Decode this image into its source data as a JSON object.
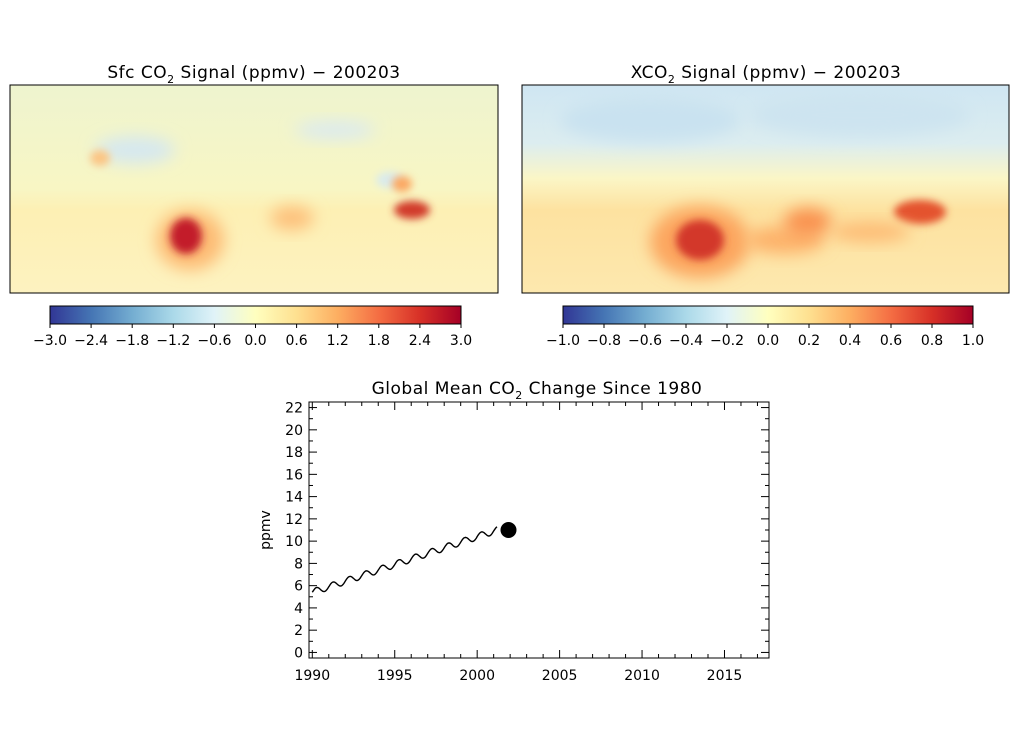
{
  "chart_data": [
    {
      "type": "heatmap",
      "panel": "sfc",
      "title_pre": "Sfc CO",
      "title_sub": "2",
      "title_post": " Signal (ppmv) − 200203",
      "colorbar": {
        "min": -3.0,
        "max": 3.0,
        "tick_labels": [
          "−3.0",
          "−2.4",
          "−1.8",
          "−1.2",
          "−0.6",
          "0.0",
          "0.6",
          "1.2",
          "1.8",
          "2.4",
          "3.0"
        ]
      },
      "hotspots": [
        {
          "region": "south-america",
          "value": 3.0
        },
        {
          "region": "southern-africa",
          "value": 1.2
        },
        {
          "region": "indonesia",
          "value": 3.0
        },
        {
          "region": "mainland-southeast-asia",
          "value": 1.2
        },
        {
          "region": "north-america-east",
          "value": -0.6
        },
        {
          "region": "northern-eurasia",
          "value": -0.6
        }
      ]
    },
    {
      "type": "heatmap",
      "panel": "xco2",
      "title_pre": "XCO",
      "title_sub": "2",
      "title_post": " Signal (ppmv) − 200203",
      "colorbar": {
        "min": -1.0,
        "max": 1.0,
        "tick_labels": [
          "−1.0",
          "−0.8",
          "−0.6",
          "−0.4",
          "−0.2",
          "0.0",
          "0.2",
          "0.4",
          "0.6",
          "0.8",
          "1.0"
        ]
      },
      "hotspots": [
        {
          "region": "south-america",
          "value": 0.9
        },
        {
          "region": "southern-africa",
          "value": 0.6
        },
        {
          "region": "indonesia",
          "value": 0.9
        },
        {
          "region": "northern-hemisphere",
          "value": -0.3
        }
      ]
    },
    {
      "type": "line",
      "title_pre": "Global Mean CO",
      "title_sub": "2",
      "title_post": " Change Since 1980",
      "ylabel": "ppmv",
      "xlim": [
        1989.8,
        2017.7
      ],
      "ylim": [
        -0.5,
        22.5
      ],
      "xticks": [
        1990,
        1995,
        2000,
        2005,
        2010,
        2015
      ],
      "yticks": [
        0,
        2,
        4,
        6,
        8,
        10,
        12,
        14,
        16,
        18,
        20,
        22
      ],
      "series": [
        {
          "x": [
            1990.0,
            1991.0,
            1992.0,
            1993.0,
            1994.0,
            1995.0,
            1996.0,
            1997.0,
            1998.0,
            1999.0,
            2000.0,
            2001.0,
            2001.2
          ],
          "y": [
            5.4,
            5.9,
            6.4,
            6.9,
            7.4,
            7.9,
            8.4,
            8.9,
            9.4,
            9.9,
            10.4,
            10.9,
            11.0
          ]
        }
      ],
      "current_point": {
        "x": 2001.9,
        "y": 11.0
      }
    }
  ]
}
